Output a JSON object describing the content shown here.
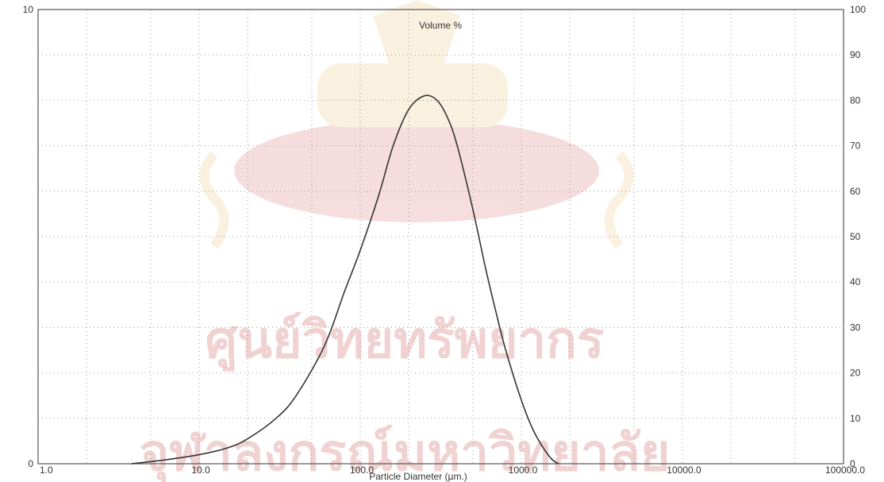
{
  "chart_data": {
    "type": "line",
    "title": "Volume %",
    "xlabel": "Particle Diameter (µm.)",
    "ylabel": "",
    "x_scale": "log",
    "xlim": [
      1,
      100000
    ],
    "ylim_left": [
      0,
      10
    ],
    "ylim_right": [
      0,
      100
    ],
    "grid": true,
    "x_ticks": [
      1,
      10,
      100,
      1000,
      10000,
      100000
    ],
    "x_tick_labels": [
      "1.0",
      "10.0",
      "100.0",
      "1000.0",
      "10000.0",
      "100000.0"
    ],
    "y_left_ticks": [
      0,
      10
    ],
    "y_left_tick_labels": [
      "0",
      "10"
    ],
    "y_right_ticks": [
      0,
      10,
      20,
      30,
      40,
      50,
      60,
      70,
      80,
      90,
      100
    ],
    "y_right_tick_labels": [
      "0",
      "10",
      "20",
      "30",
      "40",
      "50",
      "60",
      "70",
      "80",
      "90",
      "100"
    ],
    "series": [
      {
        "color": "#333333",
        "x": [
          3.8,
          6,
          10,
          15,
          20,
          30,
          40,
          60,
          80,
          100,
          130,
          160,
          200,
          250,
          300,
          350,
          400,
          500,
          600,
          700,
          800,
          1000,
          1200,
          1500,
          1700
        ],
        "y": [
          0,
          0.08,
          0.2,
          0.35,
          0.55,
          1.0,
          1.5,
          2.6,
          3.8,
          4.7,
          5.9,
          7.0,
          7.8,
          8.1,
          8.0,
          7.6,
          7.0,
          5.6,
          4.3,
          3.3,
          2.5,
          1.4,
          0.7,
          0.15,
          0
        ]
      }
    ]
  },
  "watermark": {
    "line1": "ศูนย์วิทยทรัพยากร",
    "line2": "จุฬาลงกรณ์มหาวิทยาลัย",
    "color": "#d98080"
  }
}
